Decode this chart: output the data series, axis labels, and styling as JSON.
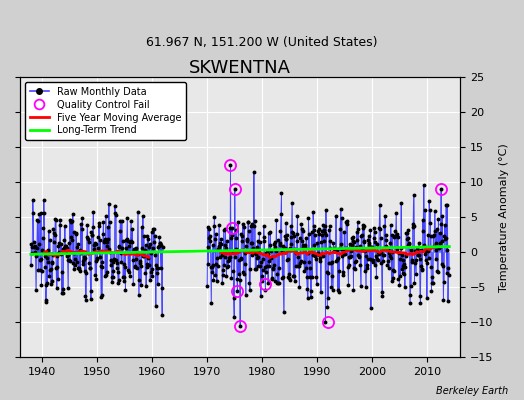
{
  "title": "SKWENTNA",
  "subtitle": "61.967 N, 151.200 W (United States)",
  "ylabel": "Temperature Anomaly (°C)",
  "credit": "Berkeley Earth",
  "xlim": [
    1936,
    2016
  ],
  "ylim": [
    -15,
    25
  ],
  "yticks": [
    -15,
    -10,
    -5,
    0,
    5,
    10,
    15,
    20,
    25
  ],
  "xticks": [
    1940,
    1950,
    1960,
    1970,
    1980,
    1990,
    2000,
    2010
  ],
  "segment1_start": 1938,
  "segment1_end": 1962,
  "segment2_start": 1970,
  "segment2_end": 2014,
  "raw_color": "#4444ff",
  "marker_color": "black",
  "qc_color": "magenta",
  "moving_avg_color": "red",
  "trend_color": "lime",
  "plot_bg_color": "#e8e8e8",
  "fig_bg_color": "#d0d0d0",
  "title_fontsize": 13,
  "subtitle_fontsize": 9,
  "seed": 12345
}
